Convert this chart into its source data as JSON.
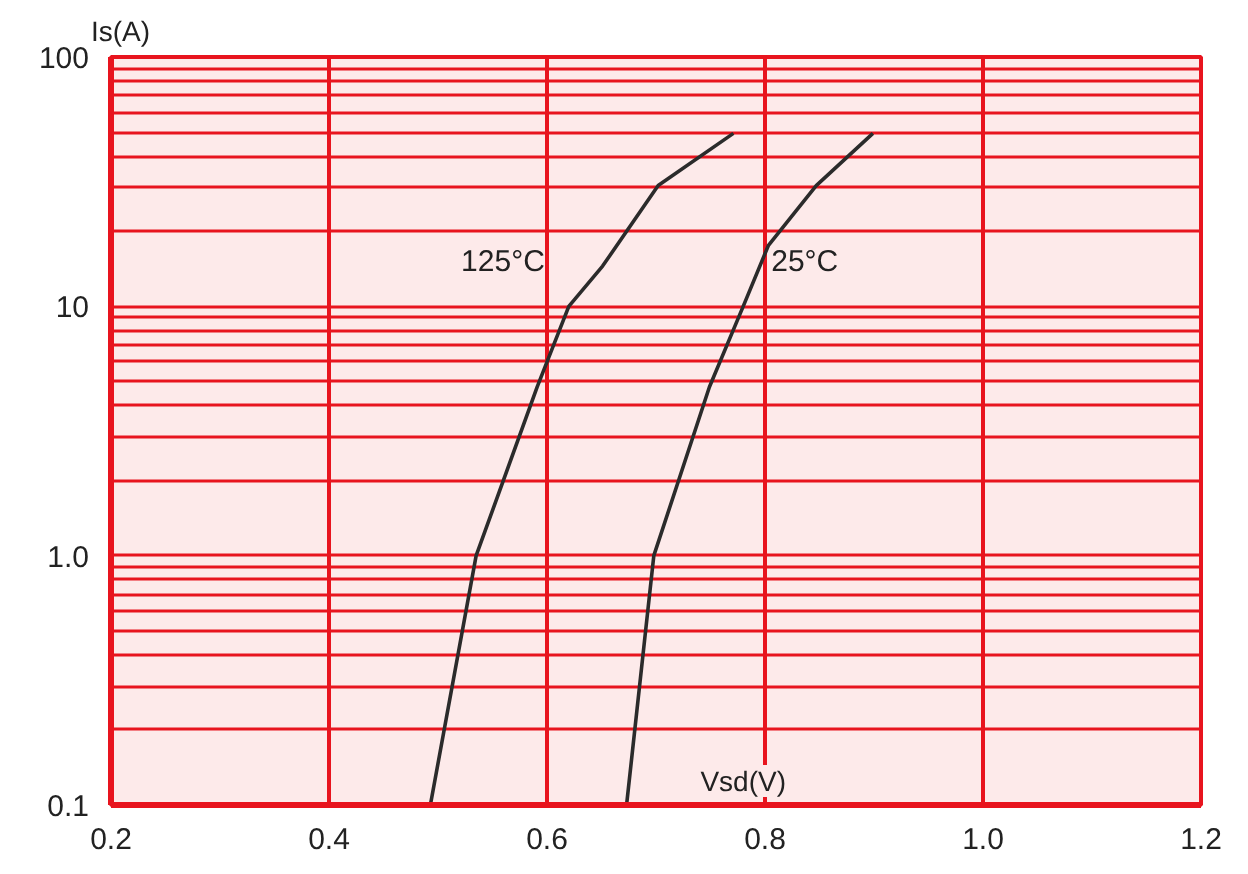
{
  "chart_data": {
    "type": "line",
    "xlabel": "Vsd(V)",
    "ylabel": "Is(A)",
    "log": "y",
    "grid": true,
    "marker": "none",
    "line_style": "solid",
    "xlim": [
      0.2,
      1.2
    ],
    "xticks": [
      0.2,
      0.4,
      0.6,
      0.8,
      {
        "value": 1.0,
        "label": "1.0"
      },
      1.2
    ],
    "ylim": [
      0.1,
      100
    ],
    "yticks": [
      0.1,
      {
        "value": 0.2,
        "label": null
      },
      {
        "value": 0.3,
        "label": null
      },
      {
        "value": 0.4,
        "label": null
      },
      {
        "value": 0.5,
        "label": null
      },
      {
        "value": 0.6,
        "label": null
      },
      {
        "value": 0.7,
        "label": null
      },
      {
        "value": 0.8,
        "label": null
      },
      {
        "value": 0.9,
        "label": null
      },
      {
        "value": 1,
        "label": "1.0"
      },
      {
        "value": 2,
        "label": null
      },
      {
        "value": 3,
        "label": null
      },
      {
        "value": 4,
        "label": null
      },
      {
        "value": 5,
        "label": null
      },
      {
        "value": 6,
        "label": null
      },
      {
        "value": 7,
        "label": null
      },
      {
        "value": 8,
        "label": null
      },
      {
        "value": 9,
        "label": null
      },
      10,
      {
        "value": 20,
        "label": null
      },
      {
        "value": 30,
        "label": null
      },
      {
        "value": 40,
        "label": null
      },
      {
        "value": 50,
        "label": null
      },
      {
        "value": 60,
        "label": null
      },
      {
        "value": 70,
        "label": null
      },
      {
        "value": 80,
        "label": null
      },
      {
        "value": 90,
        "label": null
      },
      100
    ],
    "series": [
      {
        "name": "125°C",
        "color": "#2b2b2b",
        "x": [
          0.493,
          0.535,
          0.591,
          0.62,
          0.651,
          0.702,
          0.771
        ],
        "values": [
          0.1,
          1.0,
          4.75,
          10,
          14.5,
          30.5,
          49.4
        ]
      },
      {
        "name": "25°C",
        "color": "#2b2b2b",
        "x": [
          0.673,
          0.698,
          0.749,
          0.78,
          0.803,
          0.847,
          0.899
        ],
        "values": [
          0.1,
          1.0,
          4.75,
          10,
          17.5,
          30.5,
          49.4
        ]
      }
    ]
  }
}
